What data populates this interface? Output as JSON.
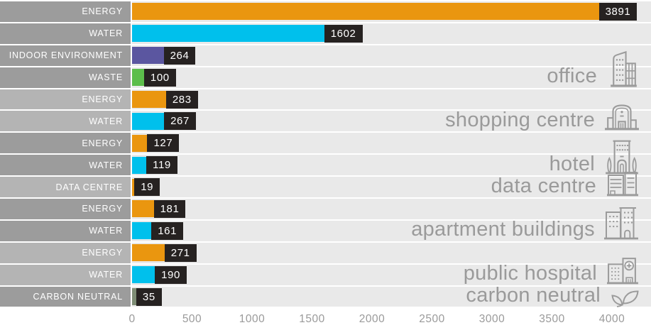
{
  "chart_data": {
    "type": "bar",
    "orientation": "horizontal",
    "title": "",
    "xlabel": "",
    "ylabel": "",
    "xlim": [
      0,
      4000
    ],
    "x_ticks": [
      0,
      500,
      1000,
      1500,
      2000,
      2500,
      3000,
      3500,
      4000
    ],
    "grid": false,
    "legend": "none",
    "groups": [
      {
        "name": "office",
        "icon": "office-building-icon",
        "rows": [
          {
            "label": "ENERGY",
            "value": 3891,
            "color_key": "orange"
          },
          {
            "label": "WATER",
            "value": 1602,
            "color_key": "cyan"
          },
          {
            "label": "INDOOR ENVIRONMENT",
            "value": 264,
            "color_key": "purple"
          },
          {
            "label": "WASTE",
            "value": 100,
            "color_key": "green"
          }
        ]
      },
      {
        "name": "shopping centre",
        "icon": "shopping-centre-icon",
        "rows": [
          {
            "label": "ENERGY",
            "value": 283,
            "color_key": "orange"
          },
          {
            "label": "WATER",
            "value": 267,
            "color_key": "cyan"
          }
        ]
      },
      {
        "name": "hotel",
        "icon": "hotel-icon",
        "rows": [
          {
            "label": "ENERGY",
            "value": 127,
            "color_key": "orange"
          },
          {
            "label": "WATER",
            "value": 119,
            "color_key": "cyan"
          }
        ]
      },
      {
        "name": "data centre",
        "icon": "data-centre-icon",
        "rows": [
          {
            "label": "DATA CENTRE",
            "value": 19,
            "color_key": "orange"
          }
        ]
      },
      {
        "name": "apartment buildings",
        "icon": "apartment-buildings-icon",
        "rows": [
          {
            "label": "ENERGY",
            "value": 181,
            "color_key": "orange"
          },
          {
            "label": "WATER",
            "value": 161,
            "color_key": "cyan"
          }
        ]
      },
      {
        "name": "public hospital",
        "icon": "public-hospital-icon",
        "rows": [
          {
            "label": "ENERGY",
            "value": 271,
            "color_key": "orange"
          },
          {
            "label": "WATER",
            "value": 190,
            "color_key": "cyan"
          }
        ]
      },
      {
        "name": "carbon neutral",
        "icon": "leaf-icon",
        "rows": [
          {
            "label": "CARBON NEUTRAL",
            "value": 35,
            "color_key": "sage"
          }
        ]
      }
    ]
  },
  "palette": {
    "orange": "#EA960F",
    "cyan": "#00C0EC",
    "purple": "#5B56A0",
    "green": "#5CBE4B",
    "sage": "#7E8D75",
    "label_dark_gray": "#9C9C9C",
    "label_light_gray": "#B4B4B4",
    "band_bg": "#E9E9E9",
    "value_box_bg": "#262221",
    "value_text": "#FFFFFF",
    "row_label_text": "#FFFFFF",
    "axis_text": "#9A9A9A",
    "group_text": "#9A9A9A",
    "icon_stroke": "#9B9B9B"
  }
}
